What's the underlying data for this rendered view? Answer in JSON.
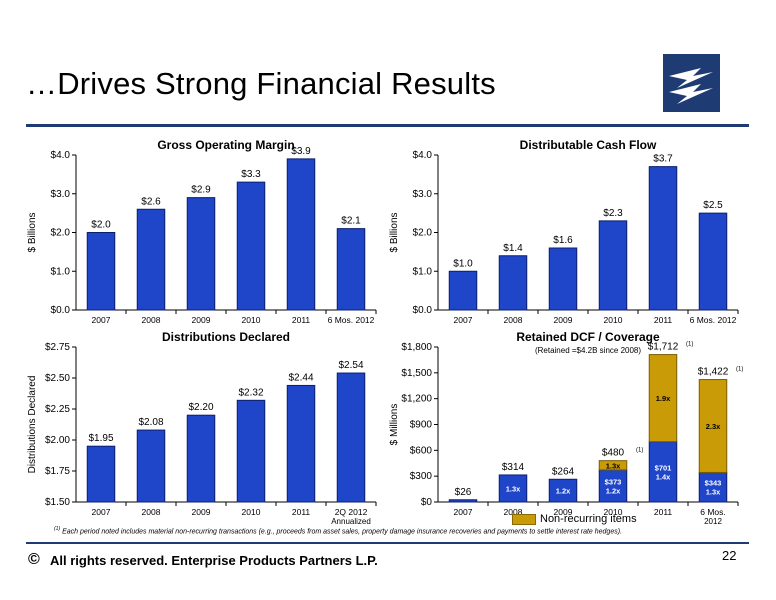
{
  "page": {
    "title": "…Drives Strong Financial Results",
    "footnote_marker": "(1)",
    "footnote": "Each period noted includes material non-recurring transactions (e.g., proceeds from asset sales, property damage insurance recoveries and payments to settle interest rate hedges).",
    "copyright_symbol": "©",
    "footer": "All rights reserved. Enterprise Products Partners L.P.",
    "page_number": "22",
    "logo_icon": "enterprise-logo-icon",
    "colors": {
      "bar": "#1f45c8",
      "bar_stroke": "#0c1f6e",
      "nonrecurring": "#c99b06",
      "brand": "#1f3b73"
    }
  },
  "chart_data": [
    {
      "type": "bar",
      "title": "Gross Operating Margin",
      "ylabel": "$ Billions",
      "categories": [
        "2007",
        "2008",
        "2009",
        "2010",
        "2011",
        "6 Mos. 2012"
      ],
      "values": [
        2.0,
        2.6,
        2.9,
        3.3,
        3.9,
        2.1
      ],
      "labels": [
        "$2.0",
        "$2.6",
        "$2.9",
        "$3.3",
        "$3.9",
        "$2.1"
      ],
      "ylim": [
        0,
        4
      ],
      "yticks": [
        "$0.0",
        "$1.0",
        "$2.0",
        "$3.0",
        "$4.0"
      ]
    },
    {
      "type": "bar",
      "title": "Distributable Cash Flow",
      "ylabel": "$ Billions",
      "categories": [
        "2007",
        "2008",
        "2009",
        "2010",
        "2011",
        "6 Mos. 2012"
      ],
      "values": [
        1.0,
        1.4,
        1.6,
        2.3,
        3.7,
        2.5
      ],
      "labels": [
        "$1.0",
        "$1.4",
        "$1.6",
        "$2.3",
        "$3.7",
        "$2.5"
      ],
      "ylim": [
        0,
        4
      ],
      "yticks": [
        "$0.0",
        "$1.0",
        "$2.0",
        "$3.0",
        "$4.0"
      ]
    },
    {
      "type": "bar",
      "title": "Distributions Declared",
      "ylabel": "Distributions Declared",
      "categories": [
        "2007",
        "2008",
        "2009",
        "2010",
        "2011",
        "2Q 2012"
      ],
      "category_sublabels": [
        "",
        "",
        "",
        "",
        "",
        "Annualized"
      ],
      "values": [
        1.95,
        2.08,
        2.2,
        2.32,
        2.44,
        2.54
      ],
      "labels": [
        "$1.95",
        "$2.08",
        "$2.20",
        "$2.32",
        "$2.44",
        "$2.54"
      ],
      "ylim": [
        1.5,
        2.75
      ],
      "yticks": [
        "$1.50",
        "$1.75",
        "$2.00",
        "$2.25",
        "$2.50",
        "$2.75"
      ]
    },
    {
      "type": "bar",
      "stacked": true,
      "title": "Retained DCF / Coverage",
      "subtitle": "(Retained =$4.2B since 2008)",
      "ylabel": "$ Millions",
      "categories": [
        "2007",
        "2008",
        "2009",
        "2010",
        "2011",
        "6 Mos."
      ],
      "category_sublabels": [
        "",
        "",
        "",
        "",
        "",
        "2012"
      ],
      "ylim": [
        0,
        1800
      ],
      "yticks": [
        "$0",
        "$300",
        "$600",
        "$900",
        "$1,200",
        "$1,500",
        "$1,800"
      ],
      "series": [
        {
          "values": [
            26,
            314,
            264,
            373,
            701,
            343
          ],
          "inner_labels": [
            "",
            "1.3x",
            "1.2x",
            "$373\n1.2x",
            "$701\n1.4x",
            "$343\n1.3x"
          ]
        },
        {
          "name": "Non-recurring items",
          "values": [
            0,
            0,
            0,
            107,
            1011,
            1079
          ],
          "inner_labels": [
            "",
            "",
            "",
            "1.3x",
            "1.9x",
            "2.3x"
          ]
        }
      ],
      "totals": [
        "$26",
        "$314",
        "$264",
        "$480",
        "$1,712",
        "$1,422"
      ],
      "total_notes": [
        "",
        "",
        "",
        "(1)",
        "(1)",
        "(1)"
      ]
    }
  ]
}
